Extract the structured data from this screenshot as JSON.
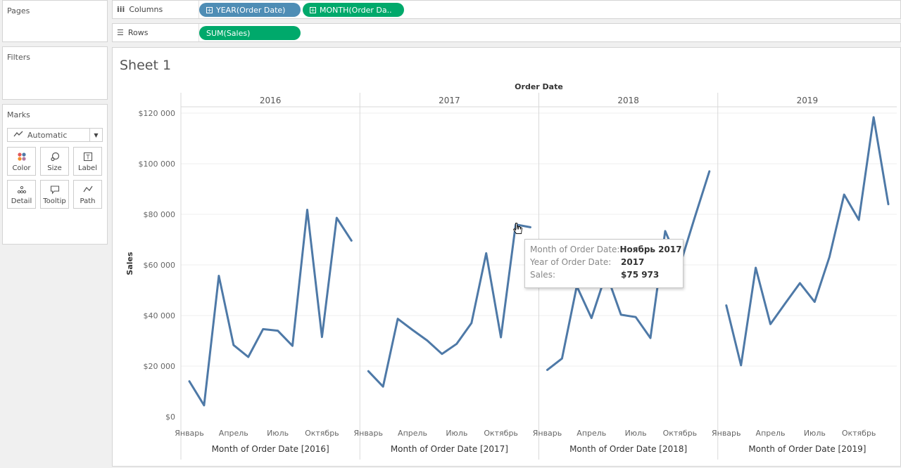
{
  "panels": {
    "pages": "Pages",
    "filters": "Filters",
    "marks": "Marks"
  },
  "marks": {
    "type": "Automatic",
    "buttons": [
      "Color",
      "Size",
      "Label",
      "Detail",
      "Tooltip",
      "Path"
    ]
  },
  "shelves": {
    "columns_label": "Columns",
    "rows_label": "Rows",
    "column_pills": [
      "YEAR(Order Date)",
      "MONTH(Order Da.."
    ],
    "row_pills": [
      "SUM(Sales)"
    ]
  },
  "sheet": {
    "title": "Sheet 1"
  },
  "colors": {
    "line": "#4e79a7",
    "pill_blue": "#4e8db5",
    "pill_green": "#00a96b"
  },
  "tooltip": {
    "rows": [
      {
        "key": "Month of Order Date:",
        "value": "Ноябрь 2017"
      },
      {
        "key": "Year of Order Date:",
        "value": "2017"
      },
      {
        "key": "Sales:",
        "value": "$75 973"
      }
    ]
  },
  "chart_data": {
    "type": "line",
    "title": "",
    "column_header": "Order Date",
    "ylabel": "Sales",
    "ylim": [
      0,
      125000
    ],
    "yticks": [
      0,
      20000,
      40000,
      60000,
      80000,
      100000,
      120000
    ],
    "ytick_labels": [
      "$0",
      "$20 000",
      "$40 000",
      "$60 000",
      "$80 000",
      "$100 000",
      "$120 000"
    ],
    "x_tick_labels": [
      "Январь",
      "Апрель",
      "Июль",
      "Октябрь"
    ],
    "x_tick_months": [
      1,
      4,
      7,
      10
    ],
    "x_labels": [
      "Month of Order Date [2016]",
      "Month of Order Date [2017]",
      "Month of Order Date [2018]",
      "Month of Order Date [2019]"
    ],
    "panes": [
      {
        "name": "2016",
        "values": [
          14000,
          4500,
          55700,
          28300,
          23600,
          34600,
          34000,
          28000,
          81800,
          31500,
          78600,
          69600
        ]
      },
      {
        "name": "2017",
        "values": [
          18000,
          11900,
          38700,
          34300,
          30100,
          24800,
          28800,
          37000,
          64600,
          31400,
          75973,
          74900
        ]
      },
      {
        "name": "2018",
        "values": [
          18500,
          23000,
          51600,
          39000,
          56700,
          40300,
          39400,
          31100,
          73400,
          59800,
          78600,
          97000
        ]
      },
      {
        "name": "2019",
        "values": [
          44000,
          20300,
          58900,
          36600,
          44800,
          52800,
          45400,
          63100,
          87800,
          77800,
          118400,
          84000
        ]
      }
    ]
  }
}
